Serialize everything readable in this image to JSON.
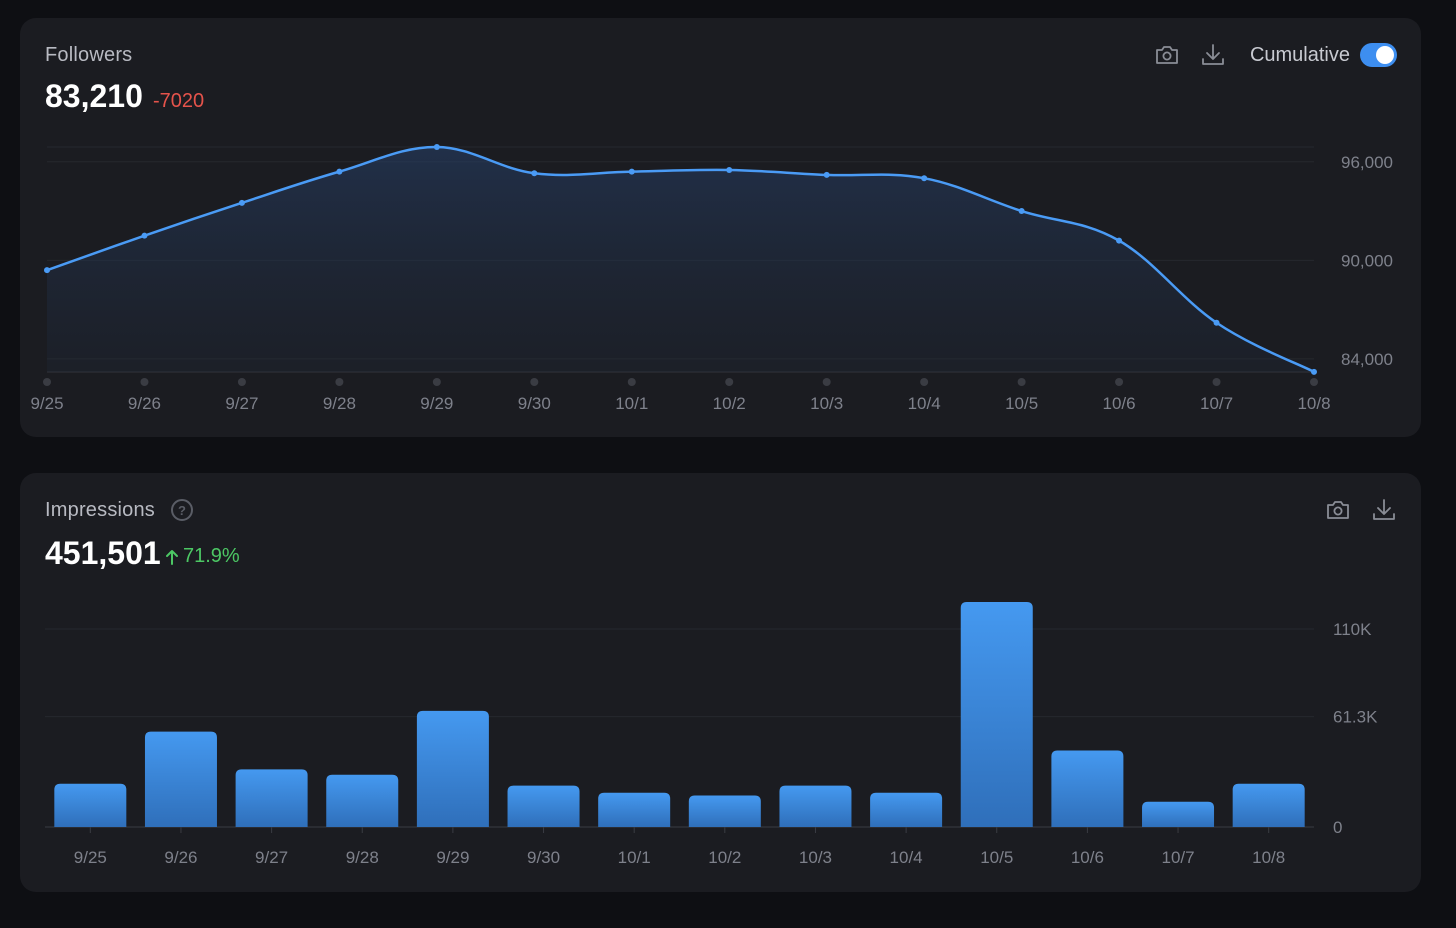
{
  "followers": {
    "title": "Followers",
    "value": "83,210",
    "delta": "-7020",
    "cumulative_label": "Cumulative",
    "cumulative_on": true,
    "icons": [
      "camera-icon",
      "download-icon"
    ],
    "colors": {
      "line": "#4a9bf5",
      "delta": "#e5534b"
    }
  },
  "impressions": {
    "title": "Impressions",
    "value": "451,501",
    "delta": "71.9%",
    "help_glyph": "?",
    "icons": [
      "camera-icon",
      "download-icon"
    ],
    "colors": {
      "bar": "#3f8fea",
      "delta": "#4cc764"
    }
  },
  "chart_data": [
    {
      "type": "area",
      "categories": [
        "9/25",
        "9/26",
        "9/27",
        "9/28",
        "9/29",
        "9/30",
        "10/1",
        "10/2",
        "10/3",
        "10/4",
        "10/5",
        "10/6",
        "10/7",
        "10/8"
      ],
      "values": [
        89400,
        91500,
        93500,
        95400,
        96900,
        95300,
        95400,
        95500,
        95200,
        95000,
        93000,
        91200,
        86200,
        83210
      ],
      "yticks": [
        "84,000",
        "90,000",
        "96,000"
      ],
      "ylim": [
        83200,
        96900
      ],
      "grid": true
    },
    {
      "type": "bar",
      "categories": [
        "9/25",
        "9/26",
        "9/27",
        "9/28",
        "9/29",
        "9/30",
        "10/1",
        "10/2",
        "10/3",
        "10/4",
        "10/5",
        "10/6",
        "10/7",
        "10/8"
      ],
      "values": [
        24000,
        53000,
        32000,
        29000,
        64500,
        23000,
        19000,
        17500,
        23000,
        19000,
        125000,
        42500,
        14000,
        24000
      ],
      "yticks": [
        "0",
        "61.3K",
        "110K"
      ],
      "ylim": [
        0,
        125000
      ],
      "grid": true
    }
  ]
}
